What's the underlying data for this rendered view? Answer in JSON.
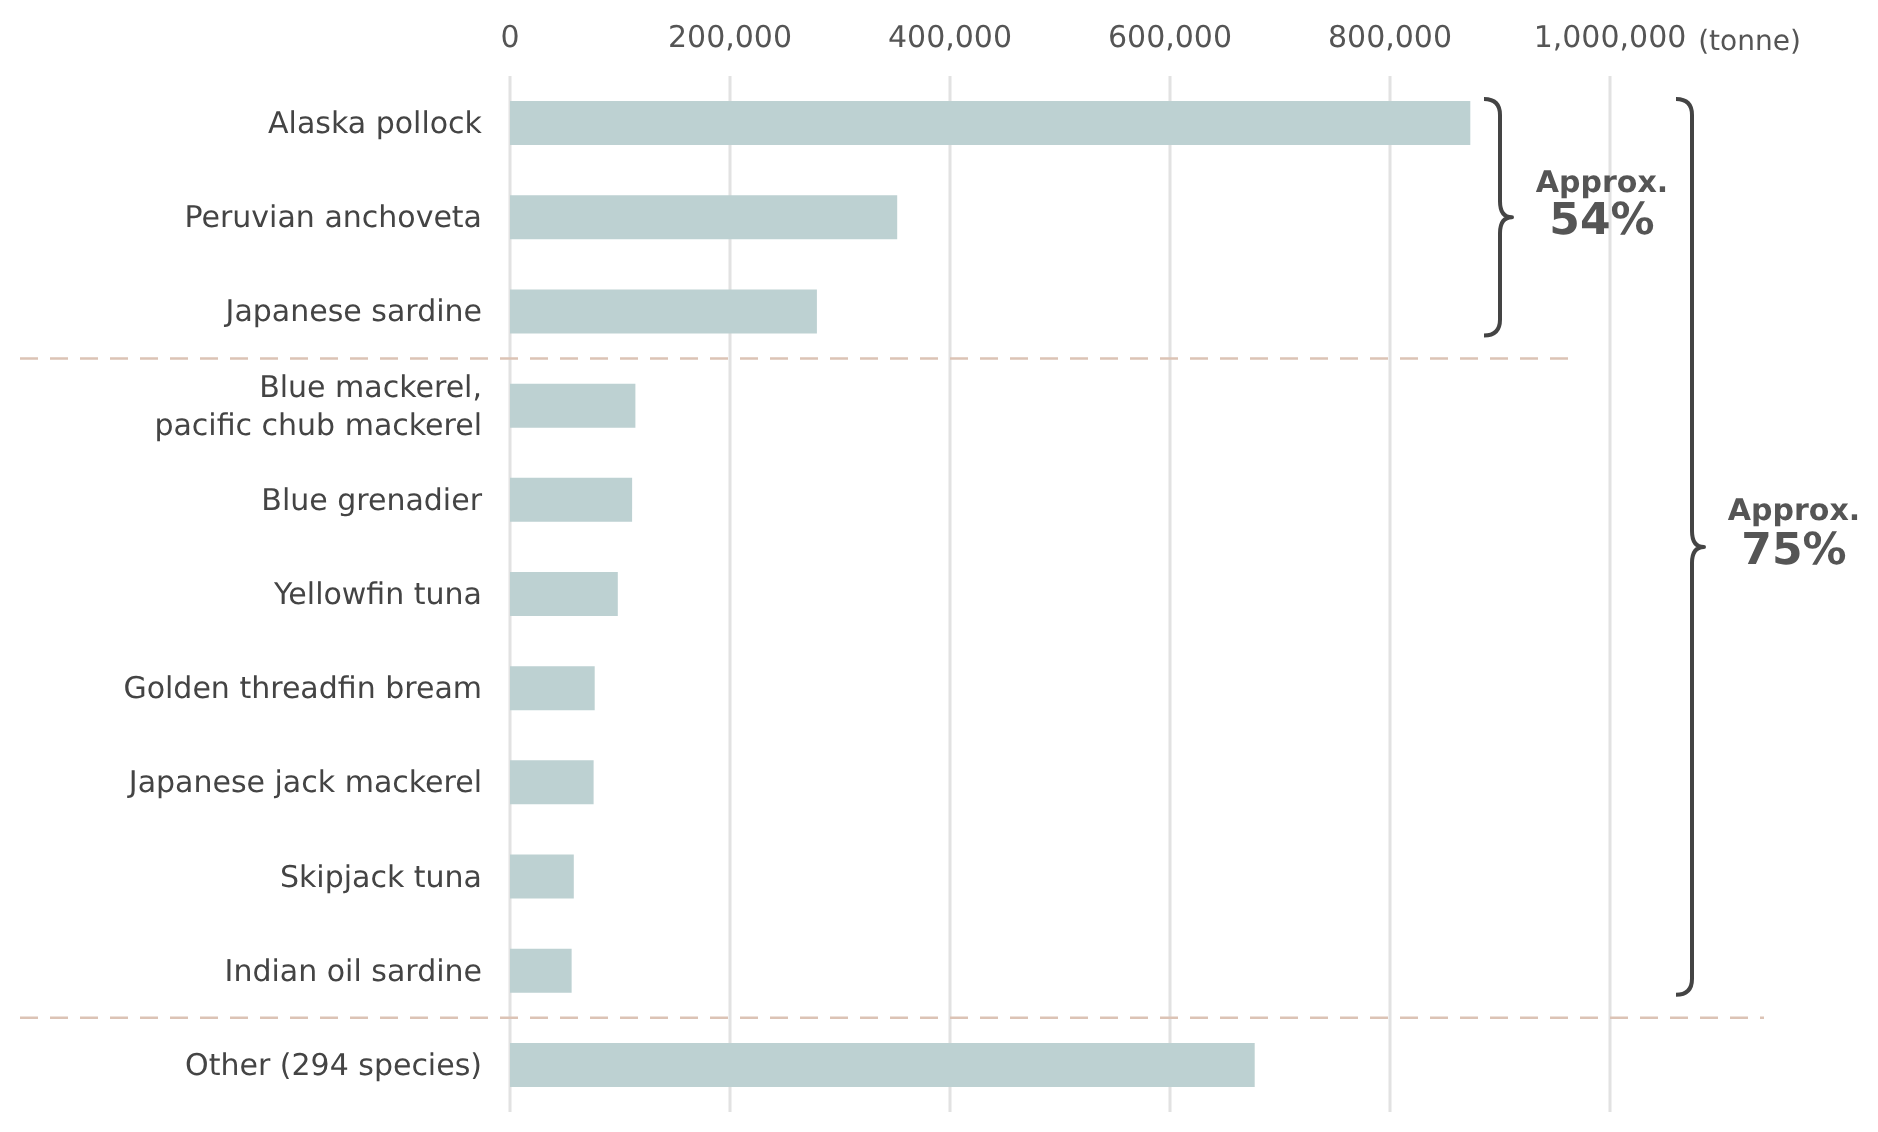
{
  "chart_data": {
    "type": "bar",
    "orientation": "horizontal",
    "categories": [
      "Alaska pollock",
      "Peruvian anchoveta",
      "Japanese sardine",
      "Blue mackerel,\npacific chub mackerel",
      "Blue grenadier",
      "Yellowfin tuna",
      "Golden threadfin bream",
      "Japanese jack mackerel",
      "Skipjack tuna",
      "Indian oil sardine",
      "Other (294 species)"
    ],
    "values": [
      873000,
      352000,
      279000,
      114000,
      111000,
      98000,
      77000,
      76000,
      58000,
      56000,
      677000
    ],
    "color": "#bdd1d2",
    "xlabel": "(tonne)",
    "xlim": [
      0,
      1000000
    ],
    "xticks": [
      0,
      {
        "value": 200000,
        "label": "200,000"
      },
      {
        "value": 400000,
        "label": "400,000"
      },
      {
        "value": 600000,
        "label": "600,000"
      },
      {
        "value": 800000,
        "label": "800,000"
      },
      {
        "value": 1000000,
        "label": "1,000,000"
      }
    ],
    "grid": "x",
    "annotations": [
      "Approx. 54%",
      "Approx. 75%"
    ]
  }
}
